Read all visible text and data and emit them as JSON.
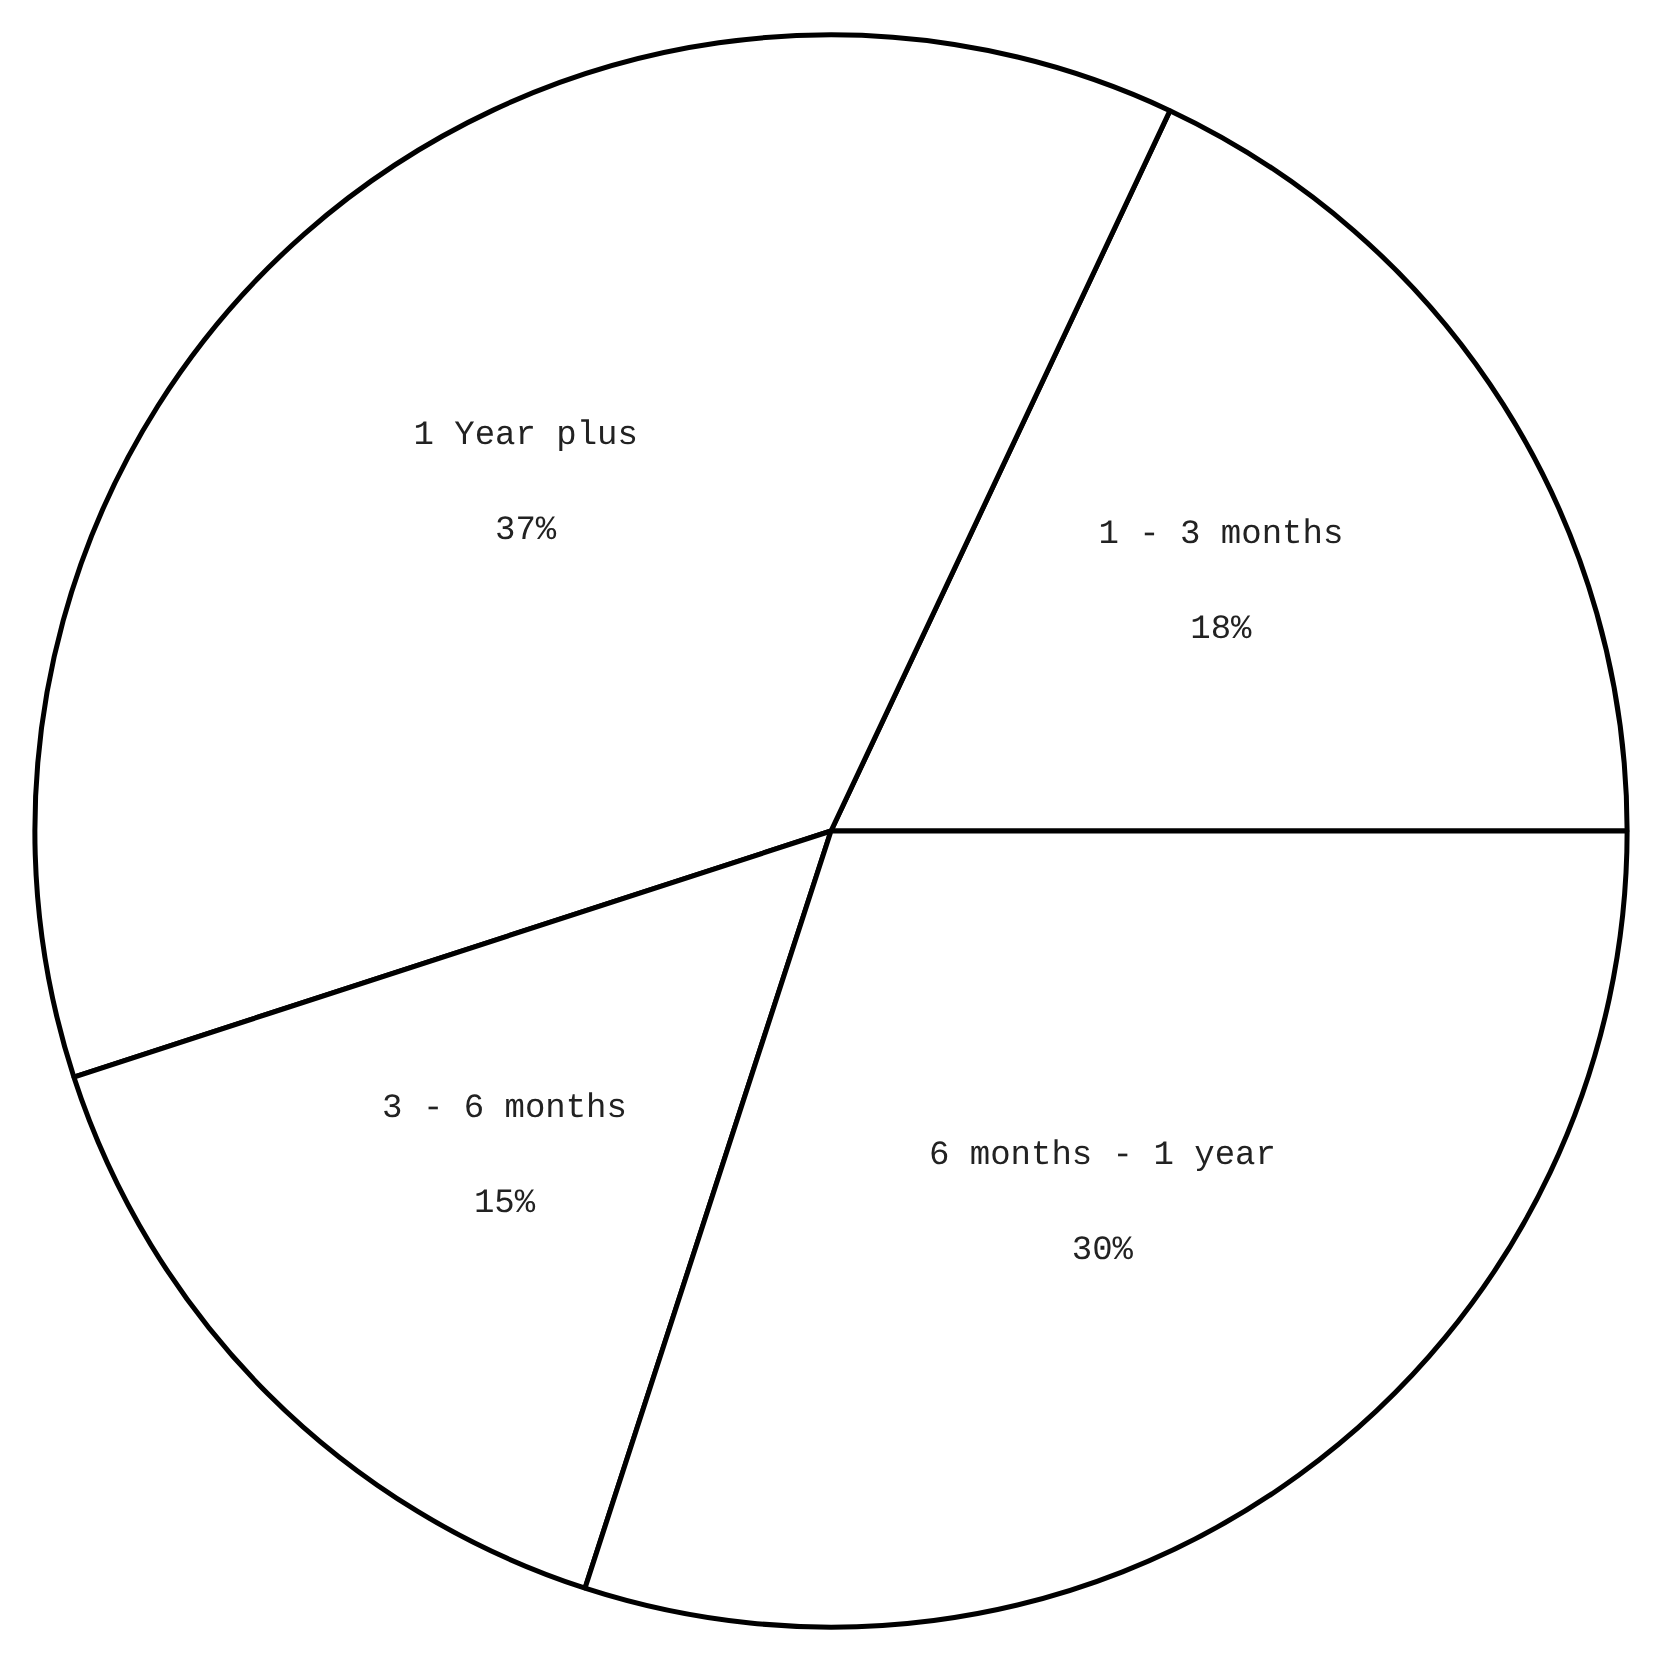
{
  "chart_data": {
    "type": "pie",
    "categories": [
      "1 - 3 months",
      "1 Year plus",
      "3 - 6 months",
      "6 months - 1 year"
    ],
    "values": [
      18,
      37,
      15,
      30
    ],
    "colors": [
      "#ffffff",
      "#ffffff",
      "#ffffff",
      "#ffffff"
    ],
    "value_labels": [
      "18%",
      "37%",
      "15%",
      "30%"
    ]
  }
}
